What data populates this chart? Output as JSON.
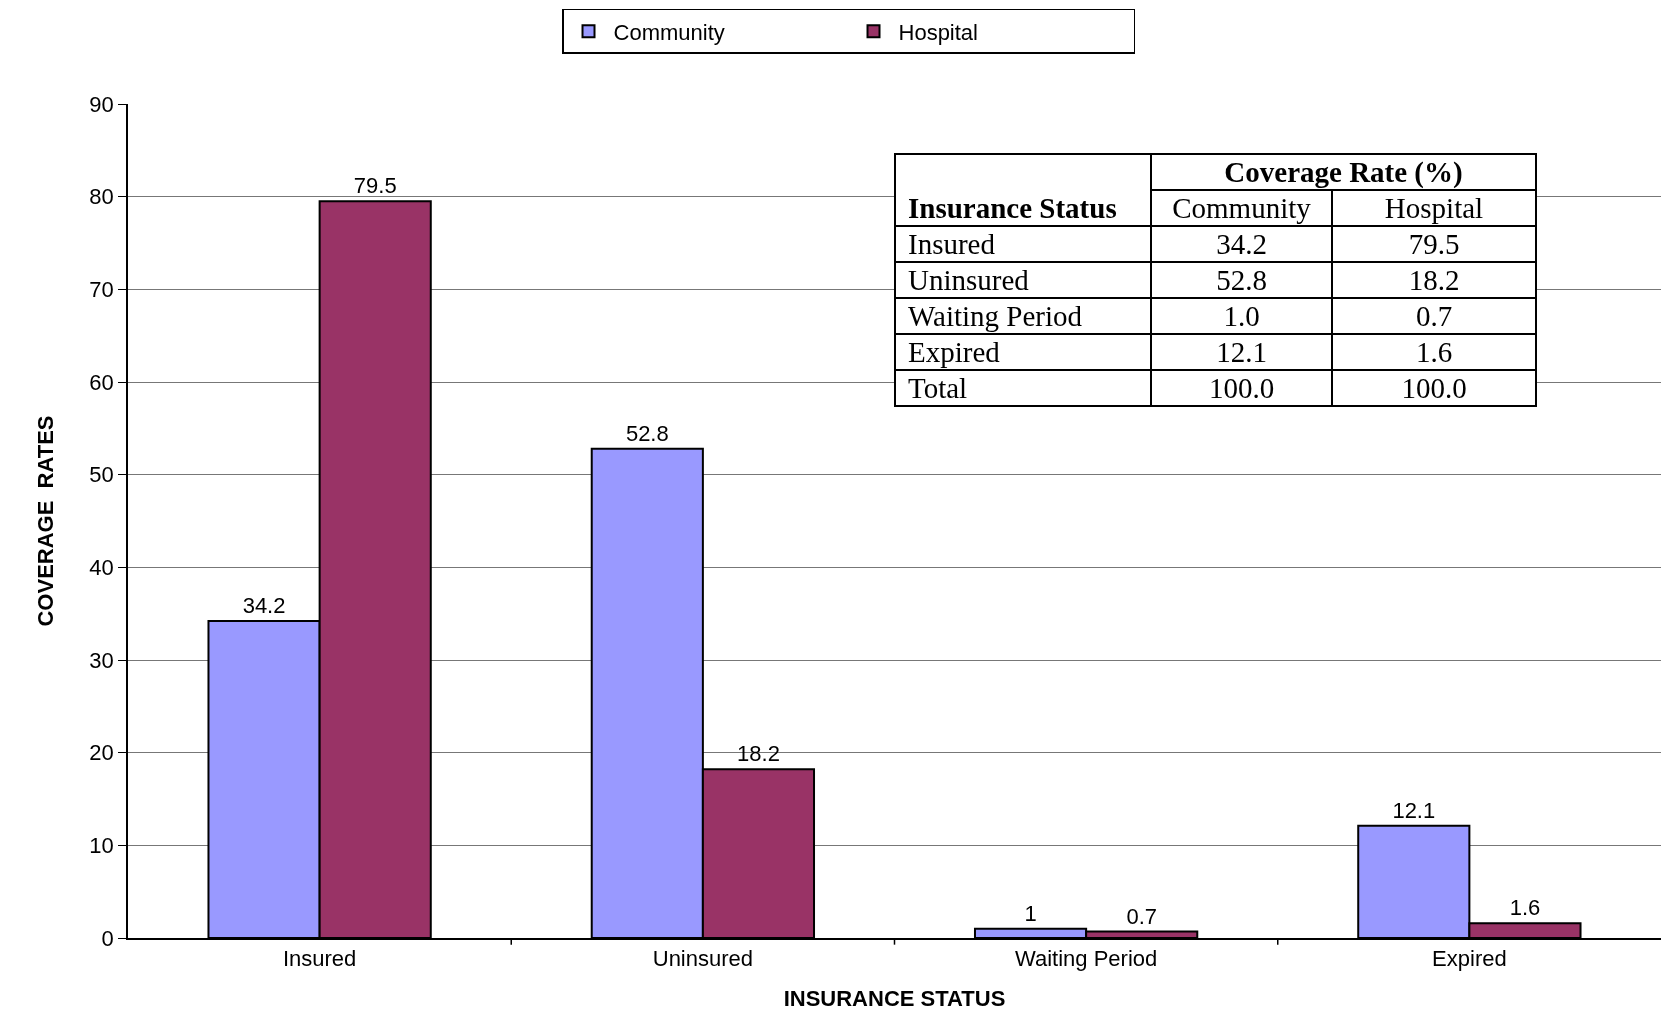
{
  "chart_data": {
    "type": "bar",
    "xlabel": "INSURANCE STATUS",
    "ylabel": "COVERAGE  RATES",
    "categories": [
      "Insured",
      "Uninsured",
      "Waiting Period",
      "Expired"
    ],
    "series": [
      {
        "name": "Community",
        "color": "#9999ff",
        "values": [
          34.2,
          52.8,
          1,
          12.1
        ],
        "value_labels": [
          "34.2",
          "52.8",
          "1",
          "12.1"
        ]
      },
      {
        "name": "Hospital",
        "color": "#993366",
        "values": [
          79.5,
          18.2,
          0.7,
          1.6
        ],
        "value_labels": [
          "79.5",
          "18.2",
          "0.7",
          "1.6"
        ]
      }
    ],
    "ylim": [
      0,
      90
    ],
    "yticks": [
      0,
      10,
      20,
      30,
      40,
      50,
      60,
      70,
      80,
      90
    ],
    "grid": "y",
    "legend": "top",
    "annotations": [
      "Coverage Rate (%)",
      "Insurance Status",
      "Community",
      "Hospital",
      "Insured",
      "34.2",
      "79.5",
      "Uninsured",
      "52.8",
      "18.2",
      "Waiting Period",
      "1.0",
      "0.7",
      "Expired",
      "12.1",
      "1.6",
      "Total",
      "100.0",
      "100.0"
    ]
  }
}
